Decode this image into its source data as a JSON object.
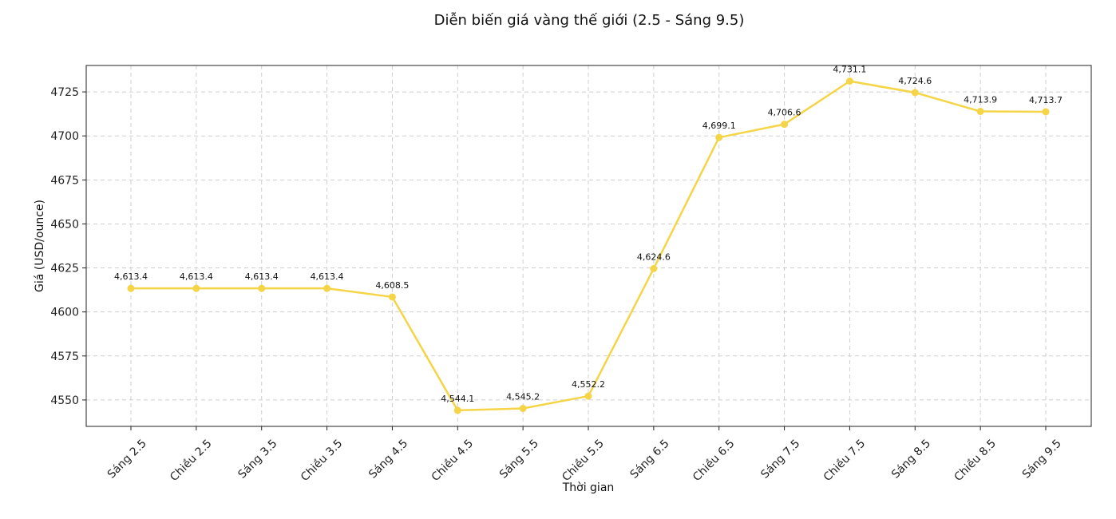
{
  "chart_data": {
    "type": "line",
    "title": "Diễn biến giá vàng thế giới (2.5 - Sáng 9.5)",
    "xlabel": "Thời gian",
    "ylabel": "Giá (USD/ounce)",
    "ylim": [
      4535,
      4740
    ],
    "yticks": [
      4550,
      4575,
      4600,
      4625,
      4650,
      4675,
      4700,
      4725
    ],
    "grid": true,
    "categories": [
      "Sáng 2.5",
      "Chiều 2.5",
      "Sáng 3.5",
      "Chiều 3.5",
      "Sáng 4.5",
      "Chiều 4.5",
      "Sáng 5.5",
      "Chiều 5.5",
      "Sáng 6.5",
      "Chiều 6.5",
      "Sáng 7.5",
      "Chiều 7.5",
      "Sáng 8.5",
      "Chiều 8.5",
      "Sáng 9.5"
    ],
    "values": [
      4613.4,
      4613.4,
      4613.4,
      4613.4,
      4608.5,
      4544.1,
      4545.2,
      4552.2,
      4624.6,
      4699.1,
      4706.6,
      4731.1,
      4724.6,
      4713.9,
      4713.7
    ],
    "data_labels": [
      "4,613.4",
      "4,613.4",
      "4,613.4",
      "4,613.4",
      "4,608.5",
      "4,544.1",
      "4,545.2",
      "4,552.2",
      "4,624.6",
      "4,699.1",
      "4,706.6",
      "4,731.1",
      "4,724.6",
      "4,713.9",
      "4,713.7"
    ],
    "line_color": "#f5d547"
  }
}
